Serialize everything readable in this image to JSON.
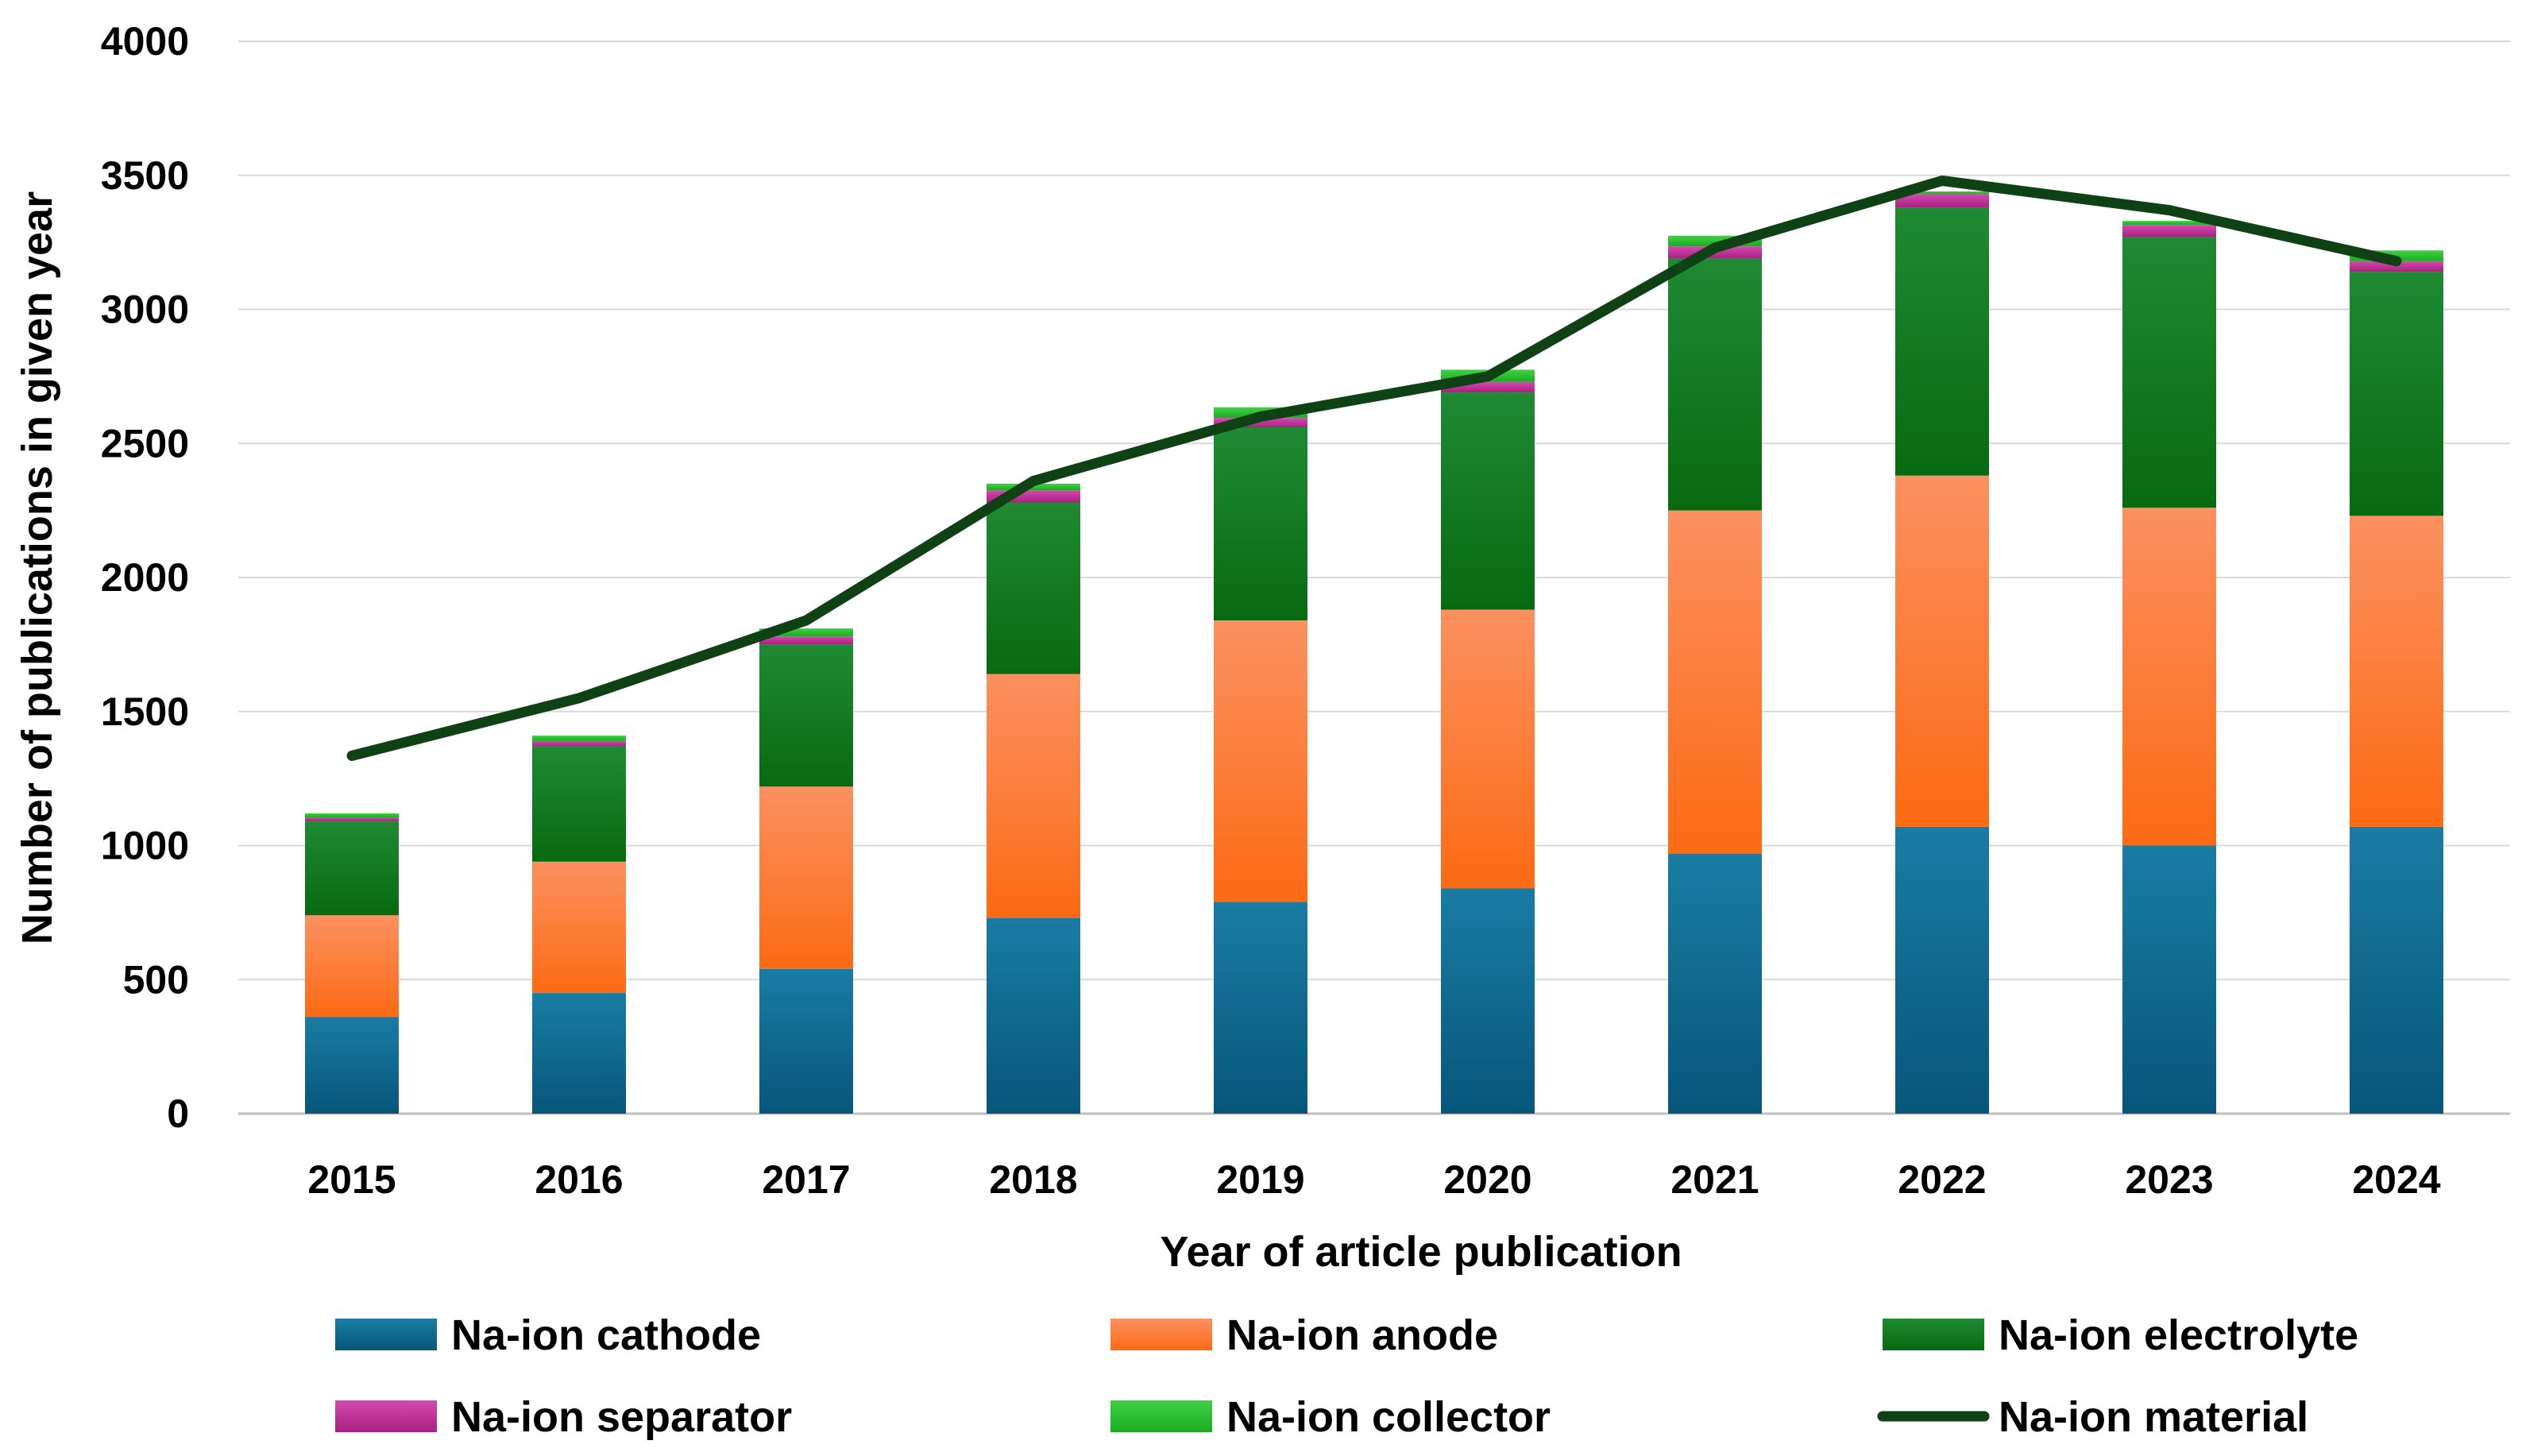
{
  "chart_data": {
    "type": "bar",
    "stacked": true,
    "title": "",
    "xlabel": "Year of article publication",
    "ylabel": "Number of publications in given year",
    "ylim": [
      0,
      4000
    ],
    "yticks": [
      0,
      500,
      1000,
      1500,
      2000,
      2500,
      3000,
      3500,
      4000
    ],
    "ytick_labels": [
      "0",
      "500",
      "1000",
      "1500",
      "2000",
      "2500",
      "3000",
      "3500",
      "4000"
    ],
    "grid": true,
    "legend_position": "bottom",
    "categories": [
      "2015",
      "2016",
      "2017",
      "2018",
      "2019",
      "2020",
      "2021",
      "2022",
      "2023",
      "2024"
    ],
    "series": [
      {
        "name": "Na-ion cathode",
        "kind": "bar",
        "color": "#0f6a8f",
        "values": [
          360,
          450,
          540,
          730,
          790,
          840,
          970,
          1070,
          1000,
          1070
        ]
      },
      {
        "name": "Na-ion anode",
        "kind": "bar",
        "color": "#f87b32",
        "values": [
          380,
          490,
          680,
          910,
          1050,
          1040,
          1280,
          1310,
          1260,
          1160
        ]
      },
      {
        "name": "Na-ion electrolyte",
        "kind": "bar",
        "color": "#127a22",
        "values": [
          350,
          430,
          530,
          640,
          720,
          810,
          940,
          1000,
          1010,
          910
        ]
      },
      {
        "name": "Na-ion separator",
        "kind": "bar",
        "color": "#c0339a",
        "values": [
          15,
          20,
          30,
          45,
          35,
          40,
          45,
          50,
          45,
          40
        ]
      },
      {
        "name": "Na-ion collector",
        "kind": "bar",
        "color": "#2fc033",
        "values": [
          15,
          20,
          30,
          25,
          40,
          45,
          40,
          10,
          15,
          40
        ]
      },
      {
        "name": "Na-ion material",
        "kind": "line",
        "color": "#0e4214",
        "values": [
          1335,
          1550,
          1840,
          2360,
          2600,
          2750,
          3230,
          3480,
          3370,
          3180
        ]
      }
    ]
  }
}
